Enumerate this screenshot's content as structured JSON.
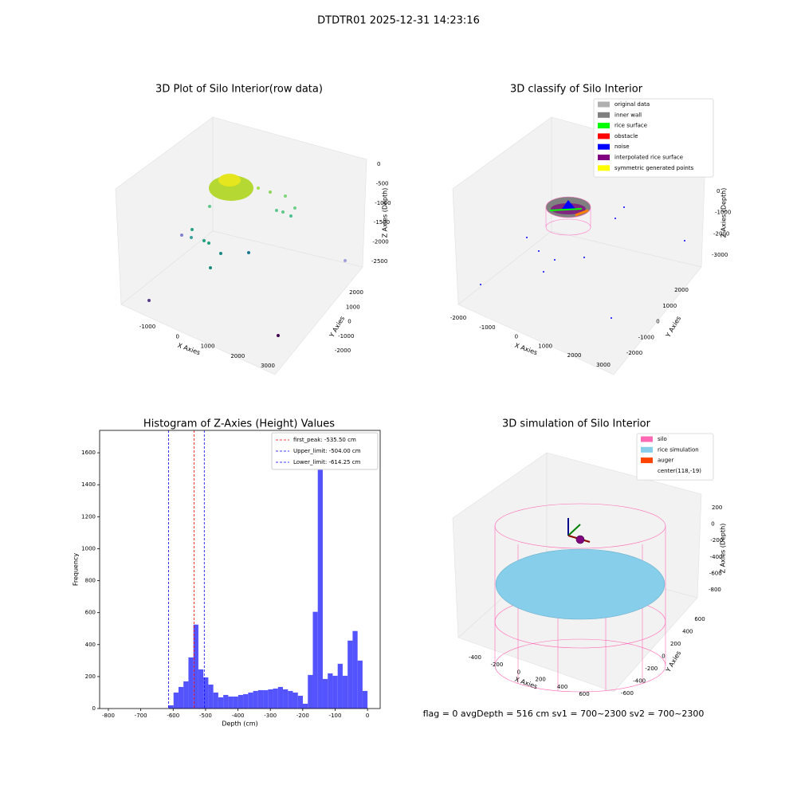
{
  "title": "DTDTR01 2025-12-31 14:23:16",
  "footer": "flag = 0     avgDepth = 516 cm  sv1 = 700~2300  sv2 = 700~2300",
  "chart_data": [
    {
      "type": "scatter3d",
      "title": "3D Plot of Silo Interior(row data)",
      "x_label": "X Axies",
      "y_label": "Y Axies",
      "z_label": "Z Axies (Depth)",
      "xticks": [
        -1000,
        0,
        1000,
        2000,
        3000
      ],
      "yticks": [
        -2000,
        -1000,
        0,
        1000,
        2000
      ],
      "zticks": [
        -2500,
        -2000,
        -1500,
        -1000,
        -500,
        0
      ]
    },
    {
      "type": "scatter3d",
      "title": "3D classify of Silo Interior",
      "x_label": "X Axies",
      "y_label": "Y Axies",
      "z_label": "Z Axies (Depth)",
      "xticks": [
        -2000,
        -1000,
        0,
        1000,
        2000,
        3000
      ],
      "yticks": [
        -2000,
        -1000,
        0,
        1000,
        2000
      ],
      "zticks": [
        -3000,
        -2000,
        -1000,
        0
      ],
      "legend": [
        {
          "name": "original data",
          "color": "#b0b0b0"
        },
        {
          "name": "inner wall",
          "color": "#808080"
        },
        {
          "name": "rice surface",
          "color": "#00ff00"
        },
        {
          "name": "obstacle",
          "color": "#ff0000"
        },
        {
          "name": "noise",
          "color": "#0000ff"
        },
        {
          "name": "interpolated rice surface",
          "color": "#800080"
        },
        {
          "name": "symmetric generated points",
          "color": "#ffff00"
        }
      ]
    },
    {
      "type": "histogram",
      "title": "Histogram of Z-Axies (Height) Values",
      "x_label": "Depth (cm)",
      "y_label": "Frequency",
      "color": "#4b4bff",
      "bins": [
        -614.25,
        -598.89,
        -583.54,
        -568.18,
        -552.83,
        -537.47,
        -522.11,
        -506.76,
        -491.4,
        -476.04,
        -460.69,
        -445.33,
        -429.98,
        -414.62,
        -399.26,
        -383.91,
        -368.55,
        -353.19,
        -337.84,
        -322.48,
        -307.13,
        -291.77,
        -276.41,
        -261.06,
        -245.7,
        -230.34,
        -214.99,
        -199.63,
        -184.28,
        -168.92,
        -153.56,
        -138.21,
        -122.85,
        -107.49,
        -92.14,
        -76.78,
        -61.43,
        -46.07,
        -30.71,
        -15.36,
        0
      ],
      "values": [
        20,
        100,
        135,
        170,
        320,
        525,
        245,
        195,
        150,
        100,
        70,
        85,
        75,
        75,
        85,
        90,
        100,
        110,
        115,
        115,
        120,
        125,
        135,
        120,
        110,
        100,
        80,
        30,
        210,
        605,
        1640,
        185,
        220,
        205,
        280,
        205,
        425,
        485,
        300,
        110
      ],
      "xlim": [
        -827,
        39
      ],
      "ylim": [
        0,
        1740
      ],
      "xticks": [
        -800,
        -700,
        -600,
        -500,
        -400,
        -300,
        -200,
        -100,
        0
      ],
      "yticks": [
        0,
        200,
        400,
        600,
        800,
        1000,
        1200,
        1400,
        1600
      ],
      "vlines": [
        {
          "name": "first_peak: -535.50 cm",
          "value": -535.5,
          "color": "#ff0000"
        },
        {
          "name": "Upper_limit: -504.00 cm",
          "value": -504,
          "color": "#0000ff"
        },
        {
          "name": "Lower_limit: -614.25 cm",
          "value": -614.25,
          "color": "#0000ff"
        }
      ],
      "legend_position": "upper right"
    },
    {
      "type": "surface3d",
      "title": "3D simulation of Silo Interior",
      "x_label": "X Axies",
      "y_label": "Y Axies",
      "z_label": "Z Axies (Depth)",
      "xticks": [
        -400,
        -200,
        0,
        200,
        400,
        600
      ],
      "yticks": [
        -600,
        -400,
        -200,
        0,
        200,
        400,
        600
      ],
      "zticks": [
        -800,
        -600,
        -400,
        -200,
        0,
        200
      ],
      "legend": [
        {
          "name": "silo",
          "color": "#ff69b4"
        },
        {
          "name": "rice simulation",
          "color": "#87ceeb"
        },
        {
          "name": "auger",
          "color": "#ff4500"
        },
        {
          "name": "center(118,-19)",
          "color": null
        }
      ]
    }
  ]
}
